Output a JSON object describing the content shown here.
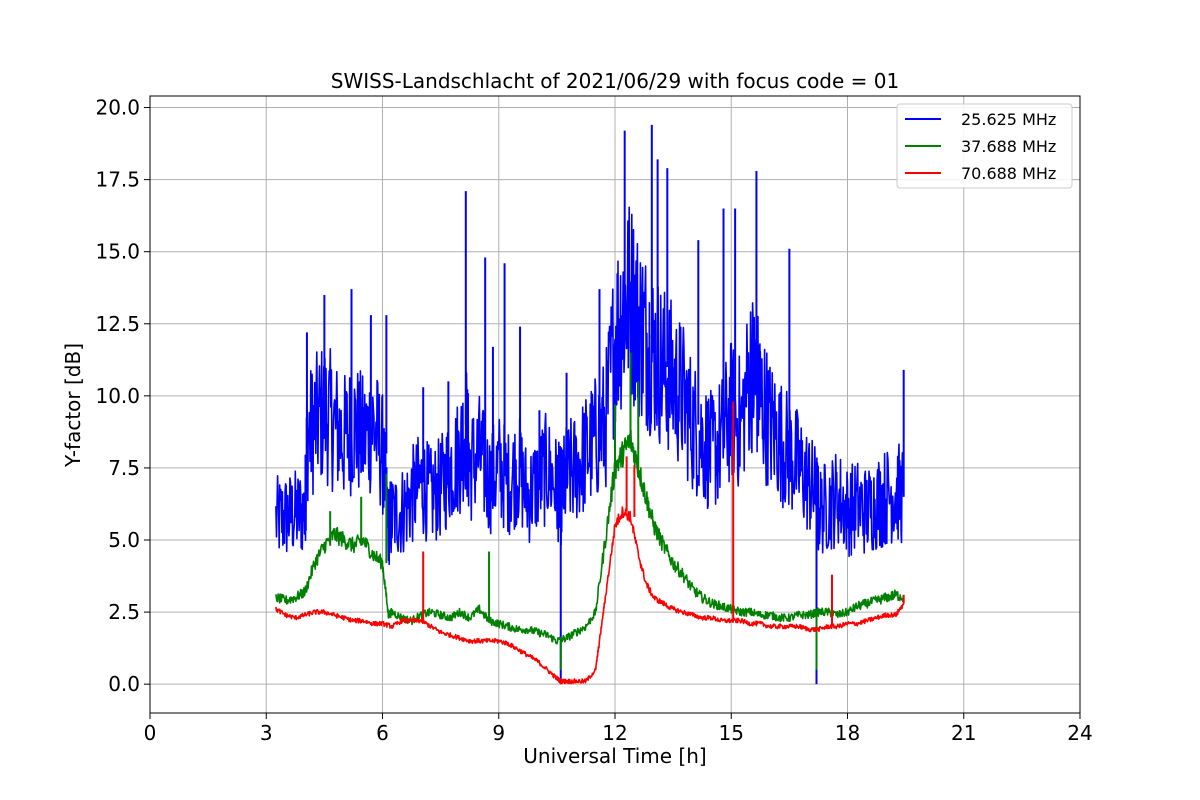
{
  "chart_data": {
    "type": "line",
    "title": "SWISS-Landschlacht of 2021/06/29 with focus code = 01",
    "xlabel": "Universal Time [h]",
    "ylabel": "Y-factor [dB]",
    "xlim": [
      0,
      24
    ],
    "ylim": [
      -1.0,
      20.4
    ],
    "x_ticks": [
      0,
      3,
      6,
      9,
      12,
      15,
      18,
      21,
      24
    ],
    "x_tick_labels": [
      "0",
      "3",
      "6",
      "9",
      "12",
      "15",
      "18",
      "21",
      "24"
    ],
    "y_ticks": [
      0.0,
      2.5,
      5.0,
      7.5,
      10.0,
      12.5,
      15.0,
      17.5,
      20.0
    ],
    "y_tick_labels": [
      "0.0",
      "2.5",
      "5.0",
      "7.5",
      "10.0",
      "12.5",
      "15.0",
      "17.5",
      "20.0"
    ],
    "grid": true,
    "legend_position": "top-right",
    "series": [
      {
        "name": "25.625 MHz",
        "color": "#0000ff",
        "x": [
          3.25,
          3.5,
          3.75,
          4.0,
          4.05,
          4.25,
          4.5,
          4.75,
          5.0,
          5.25,
          5.5,
          5.75,
          6.0,
          6.15,
          6.25,
          6.5,
          6.75,
          7.0,
          7.25,
          7.5,
          7.75,
          8.0,
          8.15,
          8.25,
          8.5,
          8.75,
          9.0,
          9.25,
          9.5,
          9.75,
          10.0,
          10.25,
          10.5,
          10.6,
          10.75,
          11.0,
          11.25,
          11.5,
          11.75,
          12.0,
          12.2,
          12.4,
          12.6,
          12.8,
          13.0,
          13.25,
          13.5,
          13.75,
          14.0,
          14.25,
          14.5,
          14.75,
          15.0,
          15.25,
          15.5,
          15.65,
          15.75,
          16.0,
          16.25,
          16.5,
          16.75,
          17.0,
          17.2,
          17.25,
          17.5,
          17.75,
          18.0,
          18.25,
          18.5,
          18.75,
          19.0,
          19.25,
          19.45
        ],
        "y": [
          5.7,
          5.8,
          5.9,
          6.0,
          8.5,
          9.0,
          9.5,
          9.0,
          8.5,
          9.0,
          8.5,
          9.0,
          8.0,
          5.5,
          5.8,
          6.0,
          6.5,
          7.0,
          6.5,
          6.8,
          7.5,
          8.0,
          9.0,
          7.5,
          8.0,
          7.0,
          7.5,
          7.0,
          7.5,
          6.5,
          7.0,
          7.5,
          6.8,
          6.5,
          7.2,
          7.5,
          8.0,
          8.5,
          9.0,
          12.0,
          13.0,
          13.5,
          12.5,
          12.0,
          11.5,
          11.0,
          10.5,
          10.0,
          9.0,
          8.5,
          8.0,
          8.5,
          9.5,
          9.0,
          11.0,
          10.5,
          10.0,
          9.0,
          8.5,
          8.0,
          7.5,
          7.0,
          6.5,
          6.0,
          6.2,
          6.5,
          6.0,
          6.2,
          6.0,
          6.3,
          6.5,
          6.7,
          6.5
        ],
        "spikes": [
          [
            4.05,
            12.2
          ],
          [
            4.5,
            13.5
          ],
          [
            5.2,
            13.7
          ],
          [
            5.7,
            12.8
          ],
          [
            6.1,
            12.8
          ],
          [
            7.05,
            10.3
          ],
          [
            7.7,
            10.5
          ],
          [
            8.15,
            17.1
          ],
          [
            8.65,
            14.8
          ],
          [
            8.85,
            11.7
          ],
          [
            9.15,
            14.6
          ],
          [
            9.55,
            12.4
          ],
          [
            10.05,
            9.5
          ],
          [
            10.6,
            0.0
          ],
          [
            10.75,
            10.8
          ],
          [
            11.6,
            13.7
          ],
          [
            12.25,
            19.2
          ],
          [
            12.95,
            19.4
          ],
          [
            13.1,
            18.2
          ],
          [
            13.35,
            17.9
          ],
          [
            14.15,
            15.4
          ],
          [
            14.8,
            16.5
          ],
          [
            15.1,
            16.5
          ],
          [
            15.65,
            17.8
          ],
          [
            16.5,
            15.1
          ],
          [
            17.2,
            0.0
          ],
          [
            19.45,
            10.9
          ]
        ],
        "envelope": "dense fluctuating trace, roughly 4.5–13 dB"
      },
      {
        "name": "37.688 MHz",
        "color": "#008000",
        "x": [
          3.25,
          3.5,
          3.75,
          4.0,
          4.25,
          4.5,
          4.75,
          5.0,
          5.25,
          5.5,
          5.75,
          6.0,
          6.15,
          6.25,
          6.5,
          6.75,
          7.0,
          7.25,
          7.5,
          7.75,
          8.0,
          8.25,
          8.5,
          8.75,
          9.0,
          9.25,
          9.5,
          9.75,
          10.0,
          10.25,
          10.5,
          10.75,
          11.0,
          11.25,
          11.5,
          11.75,
          12.0,
          12.2,
          12.4,
          12.6,
          12.8,
          13.0,
          13.25,
          13.5,
          13.75,
          14.0,
          14.25,
          14.5,
          14.75,
          15.0,
          15.25,
          15.5,
          15.75,
          16.0,
          16.25,
          16.5,
          16.75,
          17.0,
          17.25,
          17.5,
          17.75,
          18.0,
          18.25,
          18.5,
          18.75,
          19.0,
          19.25,
          19.45
        ],
        "y": [
          3.0,
          2.9,
          3.0,
          3.2,
          4.2,
          4.8,
          5.2,
          5.0,
          4.8,
          5.0,
          4.5,
          4.2,
          2.4,
          2.5,
          2.3,
          2.2,
          2.4,
          2.5,
          2.4,
          2.3,
          2.5,
          2.3,
          2.6,
          2.2,
          2.1,
          2.0,
          1.9,
          1.9,
          1.8,
          1.7,
          1.5,
          1.6,
          1.8,
          2.0,
          2.5,
          5.0,
          7.5,
          8.0,
          8.5,
          7.5,
          6.5,
          5.5,
          4.8,
          4.2,
          3.8,
          3.3,
          3.0,
          2.8,
          2.7,
          2.6,
          2.5,
          2.5,
          2.4,
          2.4,
          2.3,
          2.3,
          2.4,
          2.4,
          2.5,
          2.5,
          2.4,
          2.5,
          2.7,
          2.8,
          2.9,
          3.0,
          3.1,
          3.0
        ],
        "spikes": [
          [
            4.65,
            6.0
          ],
          [
            5.45,
            6.5
          ],
          [
            6.1,
            7.3
          ],
          [
            8.75,
            4.6
          ],
          [
            10.6,
            0.5
          ],
          [
            12.0,
            9.7
          ],
          [
            12.4,
            11.5
          ],
          [
            12.6,
            10.5
          ],
          [
            17.2,
            0.5
          ]
        ],
        "envelope": "noisy trace, ~2–3 dB baseline with hump to ~9 dB near 12 h"
      },
      {
        "name": "70.688 MHz",
        "color": "#ff0000",
        "x": [
          3.25,
          3.5,
          3.75,
          4.0,
          4.25,
          4.5,
          4.75,
          5.0,
          5.25,
          5.5,
          5.75,
          6.0,
          6.25,
          6.5,
          6.75,
          7.0,
          7.25,
          7.5,
          7.75,
          8.0,
          8.25,
          8.5,
          8.75,
          9.0,
          9.25,
          9.5,
          9.75,
          10.0,
          10.25,
          10.5,
          10.6,
          10.75,
          11.0,
          11.25,
          11.5,
          11.6,
          11.75,
          12.0,
          12.2,
          12.4,
          12.6,
          12.8,
          13.0,
          13.25,
          13.5,
          13.75,
          14.0,
          14.25,
          14.5,
          14.75,
          15.0,
          15.25,
          15.5,
          15.75,
          16.0,
          16.25,
          16.5,
          16.75,
          17.0,
          17.25,
          17.5,
          17.75,
          18.0,
          18.25,
          18.5,
          18.75,
          19.0,
          19.25,
          19.45
        ],
        "y": [
          2.6,
          2.4,
          2.3,
          2.4,
          2.5,
          2.5,
          2.4,
          2.3,
          2.2,
          2.2,
          2.1,
          2.1,
          2.0,
          2.2,
          2.2,
          2.2,
          2.0,
          1.8,
          1.7,
          1.6,
          1.5,
          1.5,
          1.5,
          1.5,
          1.4,
          1.2,
          1.0,
          0.8,
          0.5,
          0.2,
          0.1,
          0.1,
          0.1,
          0.1,
          0.5,
          1.5,
          3.0,
          5.5,
          6.0,
          5.8,
          4.5,
          3.5,
          3.0,
          2.8,
          2.6,
          2.5,
          2.4,
          2.3,
          2.3,
          2.2,
          2.2,
          2.2,
          2.1,
          2.1,
          2.0,
          2.0,
          2.0,
          2.0,
          1.9,
          1.9,
          2.0,
          2.0,
          2.1,
          2.1,
          2.2,
          2.3,
          2.4,
          2.4,
          2.8
        ],
        "spikes": [
          [
            7.05,
            4.6
          ],
          [
            12.3,
            7.9
          ],
          [
            12.5,
            7.6
          ],
          [
            15.05,
            9.8
          ],
          [
            17.6,
            3.8
          ],
          [
            19.45,
            3.1
          ]
        ],
        "envelope": "noisy trace with big burst near 12 h"
      }
    ]
  }
}
